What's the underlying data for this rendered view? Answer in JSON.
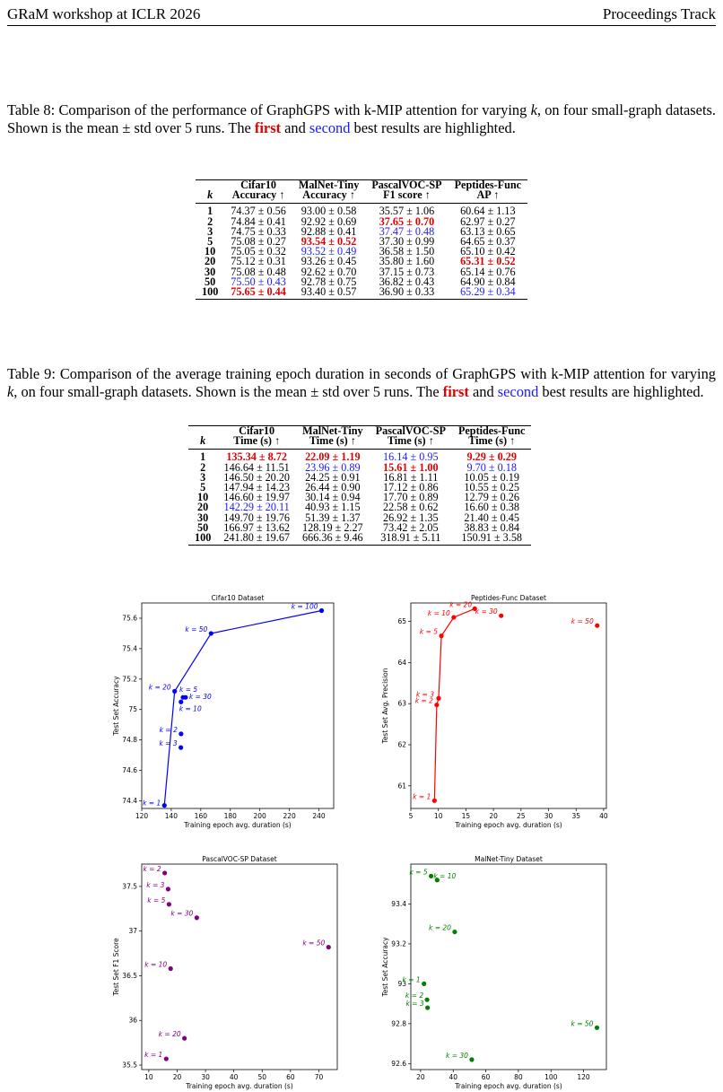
{
  "header": {
    "left": "GRaM workshop at ICLR 2026",
    "right": "Proceedings Track"
  },
  "table8": {
    "caption": {
      "pre": "Table 8: Comparison of the performance of GraphGPS with k-MIP attention for varying ",
      "k": "k",
      "mid": ", on four small-graph datasets. Shown is the mean ± std over 5 runs. The ",
      "first": "first",
      "and": " and ",
      "second": "second",
      "post": " best results are highlighted."
    },
    "headers": [
      {
        "l1": "",
        "l2": "k"
      },
      {
        "l1": "Cifar10",
        "l2": "Accuracy ↑"
      },
      {
        "l1": "MalNet-Tiny",
        "l2": "Accuracy ↑"
      },
      {
        "l1": "PascalVOC-SP",
        "l2": "F1 score ↑"
      },
      {
        "l1": "Peptides-Func",
        "l2": "AP ↑"
      }
    ],
    "rows": [
      {
        "k": "1",
        "c": [
          "74.37 ± 0.56",
          "93.00 ± 0.58",
          "35.57 ± 1.06",
          "60.64 ± 1.13"
        ],
        "h": [
          "",
          "",
          "",
          ""
        ]
      },
      {
        "k": "2",
        "c": [
          "74.84 ± 0.41",
          "92.92 ± 0.69",
          "37.65 ± 0.70",
          "62.97 ± 0.27"
        ],
        "h": [
          "",
          "",
          "best",
          ""
        ]
      },
      {
        "k": "3",
        "c": [
          "74.75 ± 0.33",
          "92.88 ± 0.41",
          "37.47 ± 0.48",
          "63.13 ± 0.65"
        ],
        "h": [
          "",
          "",
          "sec",
          ""
        ]
      },
      {
        "k": "5",
        "c": [
          "75.08 ± 0.27",
          "93.54 ± 0.52",
          "37.30 ± 0.99",
          "64.65 ± 0.37"
        ],
        "h": [
          "",
          "best",
          "",
          ""
        ]
      },
      {
        "k": "10",
        "c": [
          "75.05 ± 0.32",
          "93.52 ± 0.49",
          "36.58 ± 1.50",
          "65.10 ± 0.42"
        ],
        "h": [
          "",
          "sec",
          "",
          ""
        ]
      },
      {
        "k": "20",
        "c": [
          "75.12 ± 0.31",
          "93.26 ± 0.45",
          "35.80 ± 1.60",
          "65.31 ± 0.52"
        ],
        "h": [
          "",
          "",
          "",
          "best"
        ]
      },
      {
        "k": "30",
        "c": [
          "75.08 ± 0.48",
          "92.62 ± 0.70",
          "37.15 ± 0.73",
          "65.14 ± 0.76"
        ],
        "h": [
          "",
          "",
          "",
          ""
        ]
      },
      {
        "k": "50",
        "c": [
          "75.50 ± 0.43",
          "92.78 ± 0.75",
          "36.82 ± 0.43",
          "64.90 ± 0.84"
        ],
        "h": [
          "sec",
          "",
          "",
          ""
        ]
      },
      {
        "k": "100",
        "c": [
          "75.65 ± 0.44",
          "93.40 ± 0.57",
          "36.90 ± 0.33",
          "65.29 ± 0.34"
        ],
        "h": [
          "best",
          "",
          "",
          "sec"
        ]
      }
    ]
  },
  "table9": {
    "caption": {
      "pre": "Table 9: Comparison of the average training epoch duration in seconds of GraphGPS with k-MIP attention for varying ",
      "k": "k",
      "mid": ", on four small-graph datasets. Shown is the mean ± std over 5 runs. The ",
      "first": "first",
      "and": " and ",
      "second": "second",
      "post": " best results are highlighted."
    },
    "headers": [
      {
        "l1": "",
        "l2": "k"
      },
      {
        "l1": "Cifar10",
        "l2": "Time (s) ↑"
      },
      {
        "l1": "MalNet-Tiny",
        "l2": "Time (s) ↑"
      },
      {
        "l1": "PascalVOC-SP",
        "l2": "Time (s) ↑"
      },
      {
        "l1": "Peptides-Func",
        "l2": "Time (s) ↑"
      }
    ],
    "rows": [
      {
        "k": "1",
        "c": [
          "135.34 ± 8.72",
          "22.09 ± 1.19",
          "16.14 ± 0.95",
          "9.29 ± 0.29"
        ],
        "h": [
          "best",
          "best",
          "sec",
          "best"
        ]
      },
      {
        "k": "2",
        "c": [
          "146.64 ± 11.51",
          "23.96 ± 0.89",
          "15.61 ± 1.00",
          "9.70 ± 0.18"
        ],
        "h": [
          "",
          "sec",
          "best",
          "sec"
        ]
      },
      {
        "k": "3",
        "c": [
          "146.50 ± 20.20",
          "24.25 ± 0.91",
          "16.81 ± 1.11",
          "10.05 ± 0.19"
        ],
        "h": [
          "",
          "",
          "",
          ""
        ]
      },
      {
        "k": "5",
        "c": [
          "147.94 ± 14.23",
          "26.44 ± 0.90",
          "17.12 ± 0.86",
          "10.55 ± 0.25"
        ],
        "h": [
          "",
          "",
          "",
          ""
        ]
      },
      {
        "k": "10",
        "c": [
          "146.60 ± 19.97",
          "30.14 ± 0.94",
          "17.70 ± 0.89",
          "12.79 ± 0.26"
        ],
        "h": [
          "",
          "",
          "",
          ""
        ]
      },
      {
        "k": "20",
        "c": [
          "142.29 ± 20.11",
          "40.93 ± 1.15",
          "22.58 ± 0.62",
          "16.60 ± 0.38"
        ],
        "h": [
          "sec",
          "",
          "",
          ""
        ]
      },
      {
        "k": "30",
        "c": [
          "149.70 ± 19.76",
          "51.39 ± 1.37",
          "26.92 ± 1.35",
          "21.40 ± 0.45"
        ],
        "h": [
          "",
          "",
          "",
          ""
        ]
      },
      {
        "k": "50",
        "c": [
          "166.97 ± 13.62",
          "128.19 ± 2.27",
          "73.42 ± 2.05",
          "38.83 ± 0.84"
        ],
        "h": [
          "",
          "",
          "",
          ""
        ]
      },
      {
        "k": "100",
        "c": [
          "241.80 ± 19.67",
          "666.36 ± 9.46",
          "318.91 ± 5.11",
          "150.91 ± 3.58"
        ],
        "h": [
          "",
          "",
          "",
          ""
        ]
      }
    ]
  },
  "chart_data": [
    {
      "type": "scatter",
      "title": "Cifar10 Dataset",
      "xlabel": "Training epoch avg. duration (s)",
      "ylabel": "Test Set Accuracy",
      "color": "#0000ff",
      "line": true,
      "xlim": [
        120,
        250
      ],
      "ylim": [
        74.35,
        75.7
      ],
      "xticks": [
        120,
        140,
        160,
        180,
        200,
        220,
        240
      ],
      "yticks": [
        74.4,
        74.6,
        74.8,
        75.0,
        75.2,
        75.4,
        75.6
      ],
      "points": [
        {
          "k": "1",
          "label": "k = 1",
          "x": 135.34,
          "y": 74.37,
          "dx": -4,
          "dy": 0,
          "anchor": "end"
        },
        {
          "k": "2",
          "label": "k = 2",
          "x": 146.64,
          "y": 74.84,
          "dx": -4,
          "dy": -2,
          "anchor": "end"
        },
        {
          "k": "3",
          "label": "k = 3",
          "x": 146.5,
          "y": 74.75,
          "dx": -4,
          "dy": -2,
          "anchor": "end"
        },
        {
          "k": "5",
          "label": "k = 5",
          "x": 147.94,
          "y": 75.08,
          "dx": -4,
          "dy": -6,
          "anchor": "start"
        },
        {
          "k": "10",
          "label": "k = 10",
          "x": 146.6,
          "y": 75.05,
          "dx": -2,
          "dy": 10,
          "anchor": "start"
        },
        {
          "k": "20",
          "label": "k = 20",
          "x": 142.29,
          "y": 75.12,
          "dx": -4,
          "dy": -2,
          "anchor": "end"
        },
        {
          "k": "30",
          "label": "k = 30",
          "x": 149.7,
          "y": 75.08,
          "dx": 4,
          "dy": 2,
          "anchor": "start"
        },
        {
          "k": "50",
          "label": "k = 50",
          "x": 166.97,
          "y": 75.5,
          "dx": -4,
          "dy": -2,
          "anchor": "end"
        },
        {
          "k": "100",
          "label": "k = 100",
          "x": 241.8,
          "y": 75.65,
          "dx": -4,
          "dy": -2,
          "anchor": "end"
        }
      ],
      "line_order": [
        "1",
        "20",
        "50",
        "100"
      ]
    },
    {
      "type": "scatter",
      "title": "Peptides-Func Dataset",
      "xlabel": "Training epoch avg. duration (s)",
      "ylabel": "Test Set Avg. Precision",
      "color": "#ff0000",
      "line": true,
      "xlim": [
        5,
        40.5
      ],
      "ylim": [
        60.45,
        65.45
      ],
      "xticks": [
        5,
        10,
        15,
        20,
        25,
        30,
        35,
        40
      ],
      "yticks": [
        61,
        62,
        63,
        64,
        65
      ],
      "points": [
        {
          "k": "1",
          "label": "k = 1",
          "x": 9.29,
          "y": 60.64,
          "dx": -4,
          "dy": -2,
          "anchor": "end"
        },
        {
          "k": "2",
          "label": "k = 2",
          "x": 9.7,
          "y": 62.97,
          "dx": -4,
          "dy": -2,
          "anchor": "end"
        },
        {
          "k": "3",
          "label": "k = 3",
          "x": 10.05,
          "y": 63.13,
          "dx": -5,
          "dy": -2,
          "anchor": "end"
        },
        {
          "k": "5",
          "label": "k = 5",
          "x": 10.55,
          "y": 64.65,
          "dx": -4,
          "dy": -2,
          "anchor": "end"
        },
        {
          "k": "10",
          "label": "k = 10",
          "x": 12.79,
          "y": 65.1,
          "dx": -4,
          "dy": -2,
          "anchor": "end"
        },
        {
          "k": "20",
          "label": "k = 20",
          "x": 16.6,
          "y": 65.31,
          "dx": -3,
          "dy": -2,
          "anchor": "end"
        },
        {
          "k": "30",
          "label": "k = 30",
          "x": 21.4,
          "y": 65.14,
          "dx": -4,
          "dy": -2,
          "anchor": "end"
        },
        {
          "k": "50",
          "label": "k = 50",
          "x": 38.83,
          "y": 64.9,
          "dx": -4,
          "dy": -2,
          "anchor": "end"
        }
      ],
      "line_order": [
        "1",
        "2",
        "3",
        "5",
        "10",
        "20"
      ]
    },
    {
      "type": "scatter",
      "title": "PascalVOC-SP Dataset",
      "xlabel": "Training epoch avg. duration (s)",
      "ylabel": "Test Set F1 Score",
      "color": "#800080",
      "line": false,
      "xlim": [
        7.5,
        76.5
      ],
      "ylim": [
        35.45,
        37.75
      ],
      "xticks": [
        10,
        20,
        30,
        40,
        50,
        60,
        70
      ],
      "yticks": [
        35.5,
        36.0,
        36.5,
        37.0,
        37.5
      ],
      "points": [
        {
          "k": "1",
          "label": "k = 1",
          "x": 16.14,
          "y": 35.57,
          "dx": -4,
          "dy": -2,
          "anchor": "end"
        },
        {
          "k": "2",
          "label": "k = 2",
          "x": 15.61,
          "y": 37.65,
          "dx": -4,
          "dy": -2,
          "anchor": "end"
        },
        {
          "k": "3",
          "label": "k = 3",
          "x": 16.81,
          "y": 37.47,
          "dx": -4,
          "dy": -2,
          "anchor": "end"
        },
        {
          "k": "5",
          "label": "k = 5",
          "x": 17.12,
          "y": 37.3,
          "dx": -4,
          "dy": -2,
          "anchor": "end"
        },
        {
          "k": "10",
          "label": "k = 10",
          "x": 17.7,
          "y": 36.58,
          "dx": -4,
          "dy": -2,
          "anchor": "end"
        },
        {
          "k": "20",
          "label": "k = 20",
          "x": 22.58,
          "y": 35.8,
          "dx": -4,
          "dy": -2,
          "anchor": "end"
        },
        {
          "k": "30",
          "label": "k = 30",
          "x": 26.92,
          "y": 37.15,
          "dx": -4,
          "dy": -2,
          "anchor": "end"
        },
        {
          "k": "50",
          "label": "k = 50",
          "x": 73.42,
          "y": 36.82,
          "dx": -4,
          "dy": -2,
          "anchor": "end"
        }
      ]
    },
    {
      "type": "scatter",
      "title": "MalNet-Tiny Dataset",
      "xlabel": "Training epoch avg. duration (s)",
      "ylabel": "Test Set Accuracy",
      "color": "#008000",
      "line": false,
      "xlim": [
        14,
        134
      ],
      "ylim": [
        92.57,
        93.6
      ],
      "xticks": [
        20,
        40,
        60,
        80,
        100,
        120
      ],
      "yticks": [
        92.6,
        92.8,
        93.0,
        93.2,
        93.4
      ],
      "points": [
        {
          "k": "1",
          "label": "k = 1",
          "x": 22.09,
          "y": 93.0,
          "dx": -4,
          "dy": -2,
          "anchor": "end"
        },
        {
          "k": "2",
          "label": "k = 2",
          "x": 23.96,
          "y": 92.92,
          "dx": -4,
          "dy": -2,
          "anchor": "end"
        },
        {
          "k": "3",
          "label": "k = 3",
          "x": 24.25,
          "y": 92.88,
          "dx": -4,
          "dy": -2,
          "anchor": "end"
        },
        {
          "k": "5",
          "label": "k = 5",
          "x": 26.44,
          "y": 93.54,
          "dx": -4,
          "dy": -2,
          "anchor": "end"
        },
        {
          "k": "10",
          "label": "k = 10",
          "x": 30.14,
          "y": 93.52,
          "dx": -4,
          "dy": -2,
          "anchor": "start"
        },
        {
          "k": "20",
          "label": "k = 20",
          "x": 40.93,
          "y": 93.26,
          "dx": -4,
          "dy": -2,
          "anchor": "end"
        },
        {
          "k": "30",
          "label": "k = 30",
          "x": 51.39,
          "y": 92.62,
          "dx": -4,
          "dy": -2,
          "anchor": "end"
        },
        {
          "k": "50",
          "label": "k = 50",
          "x": 128.19,
          "y": 92.78,
          "dx": -4,
          "dy": -2,
          "anchor": "end"
        }
      ]
    }
  ]
}
